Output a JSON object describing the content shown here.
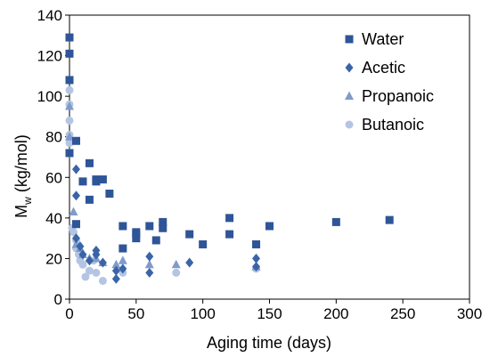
{
  "chart_data": {
    "type": "scatter",
    "title": "",
    "xlabel": "Aging time (days)",
    "ylabel_main": "M",
    "ylabel_sub": "w",
    "ylabel_rest": " (kg/mol)",
    "xlim": [
      0,
      300
    ],
    "ylim": [
      0,
      140
    ],
    "x_ticks": [
      0,
      50,
      100,
      150,
      200,
      250,
      300
    ],
    "y_ticks": [
      0,
      20,
      40,
      60,
      80,
      100,
      120,
      140
    ],
    "x_tick_labels": [
      "0",
      "50",
      "100",
      "150",
      "200",
      "250",
      "300"
    ],
    "y_tick_labels": [
      "0",
      "20",
      "40",
      "60",
      "80",
      "100",
      "120",
      "140"
    ],
    "grid": false,
    "legend_position": "top-right",
    "series": [
      {
        "name": "Water",
        "marker": "square",
        "color": "#2E5597",
        "points": [
          [
            0,
            129
          ],
          [
            0,
            121
          ],
          [
            0,
            108
          ],
          [
            0,
            72
          ],
          [
            5,
            78
          ],
          [
            5,
            37
          ],
          [
            10,
            58
          ],
          [
            15,
            67
          ],
          [
            15,
            49
          ],
          [
            20,
            59
          ],
          [
            20,
            58
          ],
          [
            25,
            59
          ],
          [
            30,
            52
          ],
          [
            40,
            25
          ],
          [
            40,
            36
          ],
          [
            50,
            30
          ],
          [
            50,
            33
          ],
          [
            50,
            32
          ],
          [
            60,
            36
          ],
          [
            65,
            29
          ],
          [
            70,
            38
          ],
          [
            70,
            35
          ],
          [
            90,
            32
          ],
          [
            100,
            27
          ],
          [
            120,
            40
          ],
          [
            120,
            32
          ],
          [
            140,
            27
          ],
          [
            150,
            36
          ],
          [
            200,
            38
          ],
          [
            240,
            39
          ]
        ]
      },
      {
        "name": "Acetic",
        "marker": "diamond",
        "color": "#3A64A8",
        "points": [
          [
            0,
            72
          ],
          [
            5,
            64
          ],
          [
            5,
            51
          ],
          [
            5,
            30
          ],
          [
            8,
            26
          ],
          [
            10,
            22
          ],
          [
            15,
            19
          ],
          [
            20,
            22
          ],
          [
            20,
            24
          ],
          [
            25,
            18
          ],
          [
            35,
            14
          ],
          [
            35,
            10
          ],
          [
            40,
            15
          ],
          [
            60,
            21
          ],
          [
            60,
            13
          ],
          [
            90,
            18
          ],
          [
            140,
            20
          ],
          [
            140,
            16
          ]
        ]
      },
      {
        "name": "Propanoic",
        "marker": "triangle",
        "color": "#7F9BC9",
        "points": [
          [
            0,
            95
          ],
          [
            0,
            80
          ],
          [
            3,
            43
          ],
          [
            5,
            27
          ],
          [
            8,
            25
          ],
          [
            10,
            22
          ],
          [
            15,
            20
          ],
          [
            20,
            20
          ],
          [
            25,
            18
          ],
          [
            35,
            17
          ],
          [
            40,
            19
          ],
          [
            60,
            17
          ],
          [
            80,
            17
          ],
          [
            140,
            16
          ]
        ]
      },
      {
        "name": "Butanoic",
        "marker": "circle",
        "color": "#B4C5E4",
        "points": [
          [
            0,
            103
          ],
          [
            0,
            96
          ],
          [
            0,
            88
          ],
          [
            0,
            81
          ],
          [
            0,
            77
          ],
          [
            2,
            35
          ],
          [
            3,
            33
          ],
          [
            5,
            29
          ],
          [
            5,
            25
          ],
          [
            7,
            22
          ],
          [
            8,
            19
          ],
          [
            10,
            17
          ],
          [
            12,
            11
          ],
          [
            15,
            14
          ],
          [
            18,
            19
          ],
          [
            20,
            13
          ],
          [
            25,
            9
          ],
          [
            40,
            13
          ],
          [
            80,
            13
          ],
          [
            140,
            15
          ]
        ]
      }
    ]
  }
}
